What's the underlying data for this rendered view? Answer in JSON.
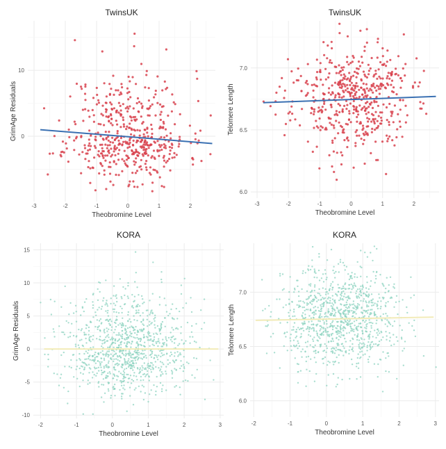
{
  "chart_data": [
    {
      "type": "scatter",
      "title": "TwinsUK",
      "xlabel": "Theobromine Level",
      "ylabel": "GrimAge Residuals",
      "xticks": [
        -3,
        -2,
        -1,
        0,
        1,
        2
      ],
      "yticks": [
        0,
        10
      ],
      "xlim": [
        -3.2,
        2.8
      ],
      "ylim": [
        -9.9,
        17.5
      ],
      "grid": true,
      "point_color": "#d8424e",
      "line_color": "#3a70b2",
      "points_summary": {
        "n": 520,
        "x_mean": 0,
        "x_sd": 0.95,
        "y_mean": -0.3,
        "y_sd": 4.0,
        "y_skew": 0.6,
        "seed": 11
      },
      "fit": {
        "x": [
          -2.8,
          2.7
        ],
        "y": [
          1.0,
          -1.1
        ],
        "ci_halfwidth": [
          1.0,
          0.9
        ],
        "ci_mid": 0.35
      }
    },
    {
      "type": "scatter",
      "title": "TwinsUK",
      "xlabel": "Theobromine Level",
      "ylabel": "Telomere Length",
      "xticks": [
        -3,
        -2,
        -1,
        0,
        1,
        2
      ],
      "yticks": [
        6.0,
        6.5,
        7.0
      ],
      "xlim": [
        -3.2,
        2.8
      ],
      "ylim": [
        5.95,
        7.38
      ],
      "grid": true,
      "point_color": "#d8424e",
      "line_color": "#3a70b2",
      "points_summary": {
        "n": 520,
        "x_mean": 0,
        "x_sd": 0.95,
        "y_mean": 6.75,
        "y_sd": 0.22,
        "y_skew": 0,
        "seed": 23
      },
      "fit": {
        "x": [
          -2.8,
          2.7
        ],
        "y": [
          6.72,
          6.77
        ],
        "ci_halfwidth": [
          0.05,
          0.05
        ],
        "ci_mid": 0.012
      }
    },
    {
      "type": "scatter",
      "title": "KORA",
      "xlabel": "Theobromine Level",
      "ylabel": "GrimAge Residuals",
      "xticks": [
        -2,
        -1,
        0,
        1,
        2,
        3
      ],
      "yticks": [
        -10,
        -5,
        0,
        5,
        10,
        15
      ],
      "xlim": [
        -2.2,
        3.1
      ],
      "ylim": [
        -10.5,
        16
      ],
      "grid": true,
      "point_color": "#8ed3c0",
      "line_color": "#f2ebb8",
      "points_summary": {
        "n": 1050,
        "x_mean": 0.4,
        "x_sd": 0.85,
        "y_mean": 0,
        "y_sd": 4.2,
        "y_skew": 0.3,
        "seed": 37
      },
      "fit": {
        "x": [
          -1.9,
          2.95
        ],
        "y": [
          0.0,
          0.0
        ],
        "ci_halfwidth": [
          0.7,
          0.75
        ],
        "ci_mid": 0.2
      }
    },
    {
      "type": "scatter",
      "title": "KORA",
      "xlabel": "Theobromine Level",
      "ylabel": "Telomere Length",
      "xticks": [
        -2,
        -1,
        0,
        1,
        2,
        3
      ],
      "yticks": [
        6.0,
        6.5,
        7.0
      ],
      "xlim": [
        -2.1,
        3.1
      ],
      "ylim": [
        5.85,
        7.45
      ],
      "grid": true,
      "point_color": "#8ed3c0",
      "line_color": "#f2ebb8",
      "points_summary": {
        "n": 1050,
        "x_mean": 0.4,
        "x_sd": 0.85,
        "y_mean": 6.76,
        "y_sd": 0.24,
        "y_skew": 0,
        "seed": 51
      },
      "fit": {
        "x": [
          -1.95,
          2.95
        ],
        "y": [
          6.74,
          6.77
        ],
        "ci_halfwidth": [
          0.04,
          0.045
        ],
        "ci_mid": 0.012
      }
    }
  ]
}
